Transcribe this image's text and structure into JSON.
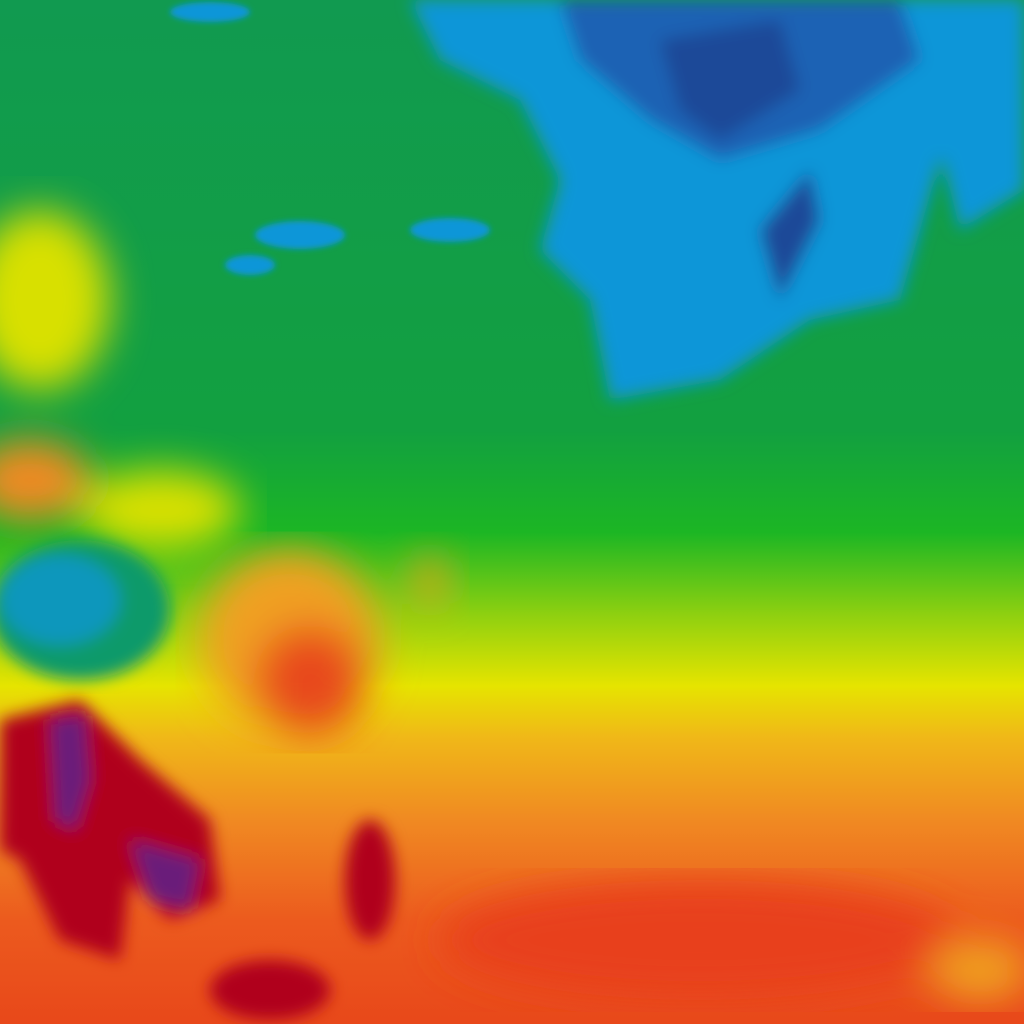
{
  "map": {
    "palette": {
      "cold_deep": "#1a4fa0",
      "cold": "#0a96d8",
      "cool": "#0f9a55",
      "mild": "#22b81e",
      "warm_light": "#e8e800",
      "warm": "#f0a020",
      "hot": "#ec4a1c",
      "very_hot": "#b0001a",
      "extreme": "#6a1a7a"
    }
  }
}
